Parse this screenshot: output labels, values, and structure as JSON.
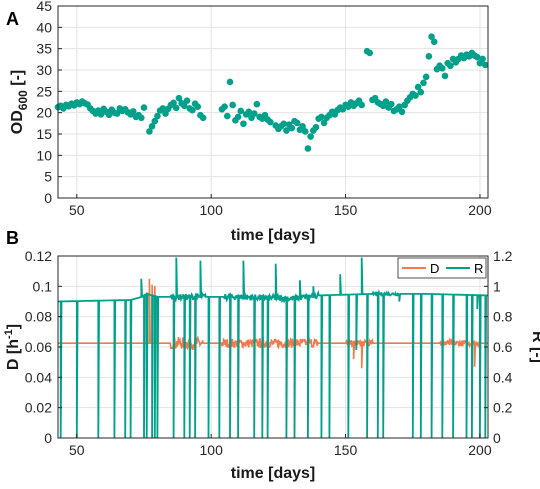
{
  "colors": {
    "teal": "#00a08a",
    "orange": "#f4784a",
    "grid": "#e3e3e3",
    "axis": "#262626"
  },
  "chart_data": [
    {
      "panel_label": "A",
      "type": "scatter",
      "xlabel": "time [days]",
      "ylabel": "OD",
      "ylabel_sub": "600",
      "ylabel_unit": " [-]",
      "xlim": [
        43,
        203
      ],
      "ylim": [
        0,
        45
      ],
      "x_ticks": [
        50,
        100,
        150,
        200
      ],
      "y_ticks": [
        0,
        5,
        10,
        15,
        20,
        25,
        30,
        35,
        40,
        45
      ],
      "grid": true,
      "series": [
        {
          "color": "teal",
          "points": [
            [
              43,
              21.3
            ],
            [
              44,
              21.6
            ],
            [
              45,
              21.0
            ],
            [
              46,
              21.8
            ],
            [
              47,
              21.5
            ],
            [
              48,
              22.1
            ],
            [
              49,
              21.7
            ],
            [
              50,
              22.4
            ],
            [
              51,
              22.0
            ],
            [
              52,
              22.6
            ],
            [
              53,
              22.2
            ],
            [
              54,
              21.9
            ],
            [
              55,
              21.0
            ],
            [
              56,
              20.4
            ],
            [
              57,
              19.8
            ],
            [
              58,
              20.5
            ],
            [
              59,
              19.6
            ],
            [
              60,
              20.9
            ],
            [
              61,
              20.2
            ],
            [
              62,
              19.5
            ],
            [
              63,
              20.7
            ],
            [
              64,
              20.0
            ],
            [
              65,
              19.8
            ],
            [
              66,
              21.0
            ],
            [
              67,
              20.4
            ],
            [
              68,
              20.8
            ],
            [
              69,
              20.1
            ],
            [
              70,
              19.6
            ],
            [
              71,
              20.3
            ],
            [
              72,
              19.0
            ],
            [
              73,
              19.4
            ],
            [
              74,
              18.8
            ],
            [
              75,
              21.2
            ],
            [
              77,
              15.6
            ],
            [
              78,
              16.8
            ],
            [
              79,
              18.0
            ],
            [
              80,
              19.2
            ],
            [
              81,
              20.5
            ],
            [
              82,
              21.0
            ],
            [
              83,
              19.8
            ],
            [
              84,
              20.9
            ],
            [
              85,
              21.8
            ],
            [
              86,
              22.3
            ],
            [
              87,
              21.1
            ],
            [
              88,
              23.4
            ],
            [
              89,
              22.2
            ],
            [
              90,
              21.6
            ],
            [
              91,
              22.8
            ],
            [
              92,
              21.0
            ],
            [
              93,
              20.6
            ],
            [
              94,
              22.1
            ],
            [
              95,
              21.4
            ],
            [
              96,
              19.4
            ],
            [
              97,
              18.8
            ],
            [
              104,
              20.8
            ],
            [
              105,
              21.4
            ],
            [
              106,
              19.2
            ],
            [
              107,
              27.2
            ],
            [
              108,
              21.8
            ],
            [
              109,
              18.2
            ],
            [
              110,
              19.0
            ],
            [
              111,
              20.4
            ],
            [
              112,
              17.4
            ],
            [
              113,
              19.6
            ],
            [
              114,
              20.2
            ],
            [
              115,
              18.8
            ],
            [
              116,
              19.8
            ],
            [
              117,
              22.0
            ],
            [
              118,
              19.0
            ],
            [
              119,
              18.6
            ],
            [
              120,
              19.4
            ],
            [
              121,
              18.4
            ],
            [
              122,
              17.8
            ],
            [
              124,
              17.0
            ],
            [
              125,
              16.2
            ],
            [
              126,
              16.8
            ],
            [
              127,
              17.4
            ],
            [
              128,
              15.8
            ],
            [
              129,
              17.2
            ],
            [
              130,
              16.4
            ],
            [
              131,
              18.0
            ],
            [
              132,
              17.6
            ],
            [
              133,
              16.0
            ],
            [
              134,
              16.8
            ],
            [
              135,
              15.6
            ],
            [
              136,
              11.6
            ],
            [
              137,
              14.4
            ],
            [
              138,
              15.8
            ],
            [
              139,
              16.6
            ],
            [
              140,
              18.6
            ],
            [
              141,
              19.0
            ],
            [
              142,
              17.6
            ],
            [
              143,
              18.8
            ],
            [
              144,
              19.4
            ],
            [
              145,
              20.2
            ],
            [
              146,
              19.6
            ],
            [
              147,
              20.6
            ],
            [
              148,
              21.2
            ],
            [
              149,
              20.8
            ],
            [
              150,
              21.8
            ],
            [
              151,
              21.4
            ],
            [
              152,
              22.4
            ],
            [
              153,
              21.6
            ],
            [
              154,
              22.2
            ],
            [
              155,
              22.8
            ],
            [
              156,
              21.8
            ],
            [
              158,
              34.4
            ],
            [
              159,
              34.0
            ],
            [
              160,
              23.0
            ],
            [
              161,
              23.4
            ],
            [
              162,
              22.4
            ],
            [
              163,
              22.0
            ],
            [
              164,
              21.6
            ],
            [
              165,
              22.6
            ],
            [
              166,
              21.2
            ],
            [
              167,
              22.0
            ],
            [
              168,
              20.4
            ],
            [
              169,
              20.8
            ],
            [
              170,
              21.4
            ],
            [
              171,
              20.2
            ],
            [
              172,
              21.8
            ],
            [
              173,
              22.8
            ],
            [
              174,
              23.6
            ],
            [
              175,
              24.4
            ],
            [
              176,
              24.0
            ],
            [
              177,
              26.0
            ],
            [
              178,
              24.8
            ],
            [
              179,
              27.0
            ],
            [
              180,
              28.4
            ],
            [
              181,
              33.2
            ],
            [
              182,
              37.8
            ],
            [
              183,
              36.6
            ],
            [
              184,
              30.2
            ],
            [
              185,
              31.0
            ],
            [
              186,
              30.4
            ],
            [
              187,
              28.6
            ],
            [
              188,
              31.6
            ],
            [
              189,
              31.0
            ],
            [
              190,
              32.6
            ],
            [
              191,
              31.8
            ],
            [
              192,
              32.6
            ],
            [
              193,
              33.4
            ],
            [
              194,
              32.8
            ],
            [
              195,
              33.6
            ],
            [
              196,
              33.2
            ],
            [
              197,
              34.0
            ],
            [
              198,
              33.4
            ],
            [
              199,
              33.0
            ],
            [
              200,
              31.6
            ],
            [
              201,
              32.6
            ],
            [
              202,
              31.2
            ]
          ]
        }
      ]
    },
    {
      "panel_label": "B",
      "type": "line",
      "xlabel": "time [days]",
      "ylabel": "D [h",
      "ylabel_sup": "-1",
      "ylabel_close": "]",
      "ylabel_right": "R [-]",
      "xlim": [
        43,
        203
      ],
      "ylim": [
        0,
        0.12
      ],
      "ylim_right": [
        0,
        1.2
      ],
      "x_ticks": [
        50,
        100,
        150,
        200
      ],
      "y_ticks": [
        "0",
        "0.02",
        "0.04",
        "0.06",
        "0.08",
        "0.1",
        "0.12"
      ],
      "y_ticks_right": [
        "0",
        "0.2",
        "0.4",
        "0.6",
        "0.8",
        "1",
        "1.2"
      ],
      "grid": true,
      "legend": {
        "position": "top-right",
        "entries": [
          {
            "name": "D",
            "color": "orange"
          },
          {
            "name": "R",
            "color": "teal"
          }
        ]
      },
      "series": [
        {
          "name": "D",
          "axis": "left",
          "color": "orange",
          "baseline": 0.0625,
          "x_start": 43,
          "x_end": 203,
          "spikes": [
            [
              76,
              0.096
            ],
            [
              77,
              0.105
            ],
            [
              78,
              0.101
            ],
            [
              79,
              0.1
            ],
            [
              86,
              0.07
            ],
            [
              121,
              0.067
            ],
            [
              153,
              0.052
            ],
            [
              156,
              0.046
            ],
            [
              197,
              0.075
            ],
            [
              198,
              0.047
            ]
          ],
          "noise_segments": [
            [
              85,
              97,
              0.004
            ],
            [
              104,
              140,
              0.003
            ],
            [
              150,
              160,
              0.002
            ],
            [
              185,
              200,
              0.002
            ]
          ]
        },
        {
          "name": "R",
          "axis": "right",
          "color": "teal",
          "x_start": 43,
          "x_end": 203,
          "segments": [
            [
              43,
              0.9
            ],
            [
              70,
              0.91
            ],
            [
              74,
              0.93
            ],
            [
              76,
              0.95
            ],
            [
              80,
              0.93
            ],
            [
              90,
              0.93
            ],
            [
              100,
              0.93
            ],
            [
              110,
              0.93
            ],
            [
              130,
              0.92
            ],
            [
              140,
              0.94
            ],
            [
              160,
              0.95
            ],
            [
              180,
              0.95
            ],
            [
              203,
              0.94
            ]
          ],
          "noise_segments": [
            [
              85,
              98,
              0.02
            ],
            [
              105,
              140,
              0.02
            ],
            [
              160,
              170,
              0.01
            ]
          ],
          "spikes": [
            [
              44,
              0
            ],
            [
              50,
              0
            ],
            [
              58,
              0
            ],
            [
              64,
              0
            ],
            [
              68,
              0
            ],
            [
              70,
              0
            ],
            [
              74,
              1.05
            ],
            [
              75,
              0
            ],
            [
              76,
              0
            ],
            [
              78,
              0
            ],
            [
              79,
              0
            ],
            [
              80,
              0
            ],
            [
              86,
              0
            ],
            [
              87,
              1.19
            ],
            [
              90,
              0
            ],
            [
              92,
              0
            ],
            [
              94,
              0
            ],
            [
              96,
              1.17
            ],
            [
              99,
              0
            ],
            [
              103,
              0
            ],
            [
              107,
              0
            ],
            [
              110,
              0
            ],
            [
              112,
              1.17
            ],
            [
              116,
              0
            ],
            [
              119,
              0
            ],
            [
              121,
              0
            ],
            [
              124,
              1.15
            ],
            [
              128,
              0
            ],
            [
              131,
              0
            ],
            [
              133,
              1.04
            ],
            [
              136,
              0
            ],
            [
              138,
              1.0
            ],
            [
              141,
              0
            ],
            [
              144,
              0
            ],
            [
              148,
              1.08
            ],
            [
              151,
              0
            ],
            [
              154,
              0.58
            ],
            [
              156,
              1.19
            ],
            [
              158,
              0
            ],
            [
              162,
              0
            ],
            [
              164,
              0
            ],
            [
              170,
              0.9
            ],
            [
              175,
              0
            ],
            [
              178,
              0
            ],
            [
              182,
              0
            ],
            [
              186,
              0
            ],
            [
              190,
              0
            ],
            [
              195,
              0
            ],
            [
              197,
              0
            ],
            [
              199,
              0.85
            ],
            [
              200,
              0
            ],
            [
              202,
              0
            ]
          ]
        }
      ]
    }
  ]
}
